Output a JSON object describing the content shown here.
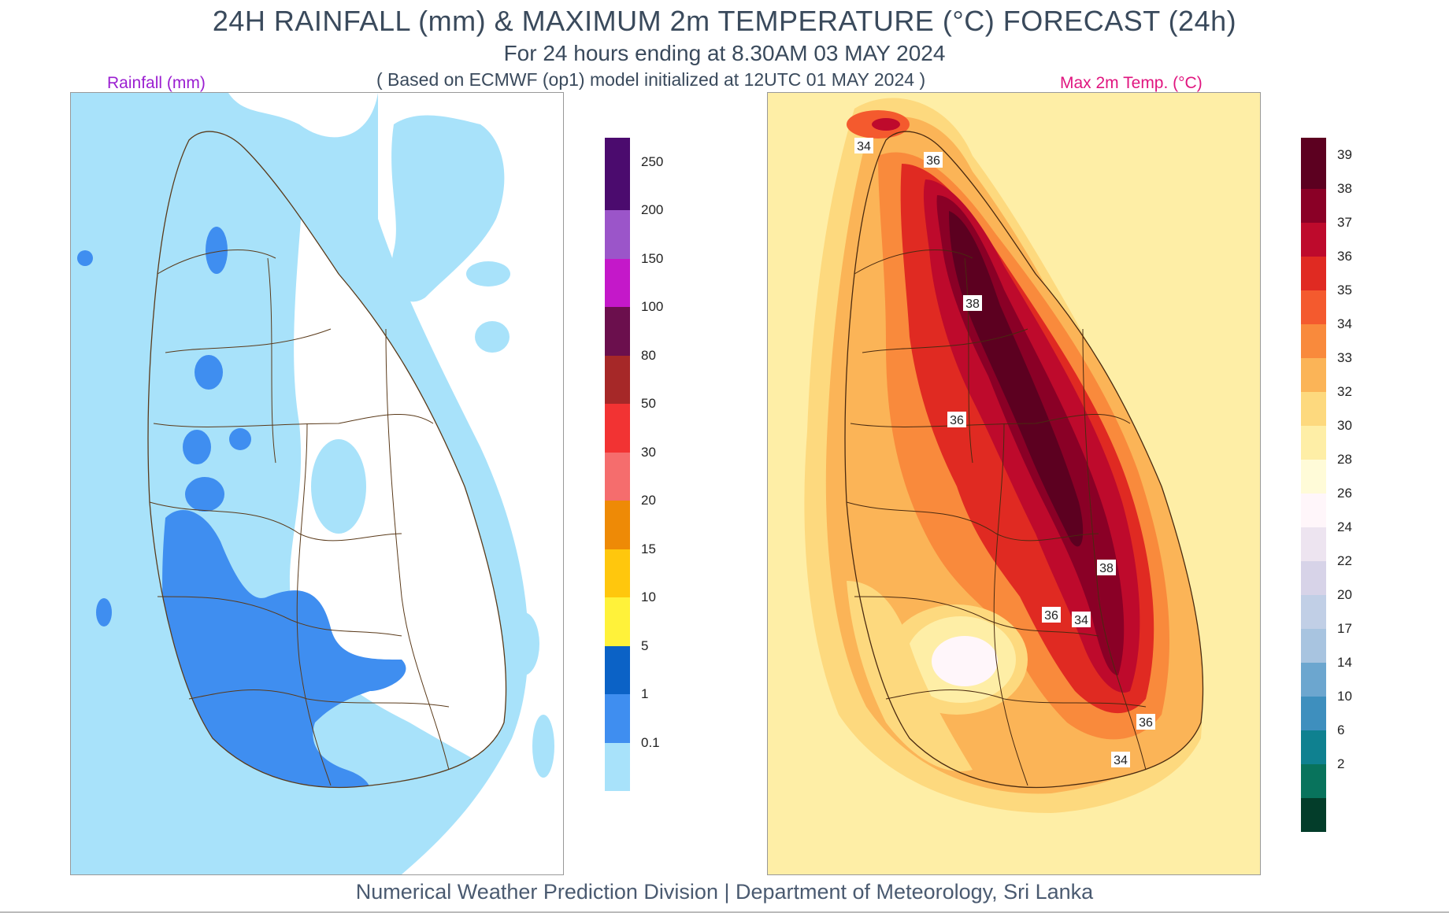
{
  "header": {
    "title": "24H RAINFALL (mm) & MAXIMUM 2m TEMPERATURE (°C) FORECAST (24h)",
    "subtitle": "For 24 hours ending at 8.30AM 03 MAY 2024",
    "note": "( Based on ECMWF (op1) model initialized at 12UTC 01 MAY 2024 )"
  },
  "rain_panel": {
    "label": "Rainfall (mm)",
    "label_color": "#9b1fd1",
    "colorbar": [
      {
        "label": "250",
        "color": "#4b0b6e"
      },
      {
        "label": "200",
        "color": "#9b55c9"
      },
      {
        "label": "150",
        "color": "#c418c9"
      },
      {
        "label": "100",
        "color": "#6b0f4d"
      },
      {
        "label": "80",
        "color": "#a62828"
      },
      {
        "label": "50",
        "color": "#f23333"
      },
      {
        "label": "30",
        "color": "#f56d6d"
      },
      {
        "label": "20",
        "color": "#ee8a06"
      },
      {
        "label": "15",
        "color": "#ffc70d"
      },
      {
        "label": "10",
        "color": "#fff23a"
      },
      {
        "label": "5",
        "color": "#0b62c6"
      },
      {
        "label": "1",
        "color": "#3f8ef0"
      },
      {
        "label": "0.1",
        "color": "#a8e2fa"
      }
    ]
  },
  "temp_panel": {
    "label": "Max 2m Temp. (°C)",
    "label_color": "#e0157f",
    "colorbar_warm": [
      {
        "label": "39",
        "color": "#5c0020"
      },
      {
        "label": "38",
        "color": "#8a0026"
      },
      {
        "label": "37",
        "color": "#be0a2c"
      },
      {
        "label": "36",
        "color": "#e02a22"
      },
      {
        "label": "35",
        "color": "#f45a2e"
      },
      {
        "label": "34",
        "color": "#f98a3c"
      },
      {
        "label": "33",
        "color": "#fbb457"
      },
      {
        "label": "32",
        "color": "#fdd97e"
      },
      {
        "label": "30",
        "color": "#feeea6"
      },
      {
        "label": "28",
        "color": "#fffbd8"
      }
    ],
    "colorbar_cool": [
      {
        "label": "26",
        "color": "#fff6fa"
      },
      {
        "label": "24",
        "color": "#ede4f0"
      },
      {
        "label": "22",
        "color": "#d7d3e8"
      },
      {
        "label": "20",
        "color": "#c1cfe6"
      },
      {
        "label": "17",
        "color": "#a8c4e0"
      },
      {
        "label": "14",
        "color": "#6ca6cf"
      },
      {
        "label": "10",
        "color": "#3e8fbe"
      },
      {
        "label": "6",
        "color": "#0f8190"
      },
      {
        "label": "2",
        "color": "#08735c"
      },
      {
        "label": "",
        "color": "#033d2a"
      }
    ],
    "contour_labels": [
      "34",
      "36",
      "38",
      "36",
      "38",
      "36",
      "34",
      "36",
      "34"
    ]
  },
  "footer": {
    "text": "Numerical Weather Prediction Division | Department of Meteorology, Sri Lanka"
  }
}
